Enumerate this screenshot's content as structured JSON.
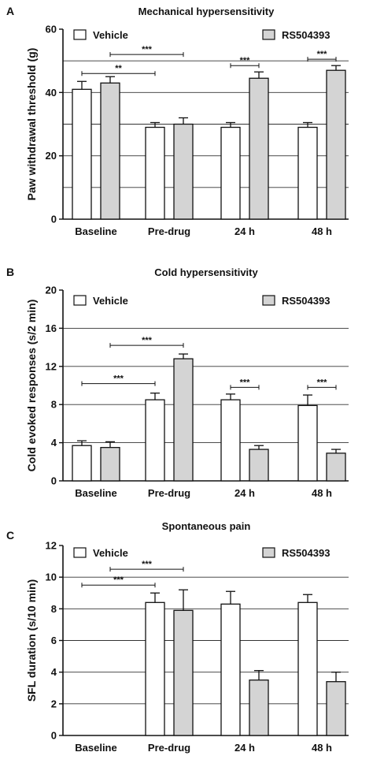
{
  "colors": {
    "vehicle": "#ffffff",
    "rs504393": "#d4d4d4",
    "axis": "#111111"
  },
  "chart_data": [
    {
      "panel": "A",
      "type": "bar",
      "title": "Mechanical hypersensitivity",
      "ylabel": "Paw withdrawal threshold (g)",
      "xlabel": "",
      "ylim": [
        0,
        60
      ],
      "yticks": [
        0,
        20,
        40,
        60
      ],
      "grid_lines": [
        10,
        20,
        30,
        40,
        50
      ],
      "categories": [
        "Baseline",
        "Pre-drug",
        "24 h",
        "48 h"
      ],
      "series": [
        {
          "name": "Vehicle",
          "values": [
            41,
            29,
            29,
            29
          ],
          "errors": [
            2.5,
            1.5,
            1.5,
            1.5
          ]
        },
        {
          "name": "RS504393",
          "values": [
            43,
            30,
            44.5,
            47
          ],
          "errors": [
            2,
            2,
            2,
            1.5
          ]
        }
      ],
      "significance": [
        {
          "label": "**",
          "from": [
            0,
            0
          ],
          "to": [
            1,
            0
          ],
          "level": 46
        },
        {
          "label": "***",
          "from": [
            0,
            1
          ],
          "to": [
            1,
            1
          ],
          "level": 52
        },
        {
          "label": "***",
          "from": [
            2,
            0
          ],
          "to": [
            2,
            1
          ],
          "level": 48.5
        },
        {
          "label": "***",
          "from": [
            3,
            0
          ],
          "to": [
            3,
            1
          ],
          "level": 50.5
        }
      ],
      "legend": "top"
    },
    {
      "panel": "B",
      "type": "bar",
      "title": "Cold hypersensitivity",
      "ylabel": "Cold evoked responses (s/2 min)",
      "xlabel": "",
      "ylim": [
        0,
        20
      ],
      "yticks": [
        0,
        4,
        8,
        12,
        16,
        20
      ],
      "grid_lines": [
        4,
        8,
        12,
        16
      ],
      "categories": [
        "Baseline",
        "Pre-drug",
        "24 h",
        "48 h"
      ],
      "series": [
        {
          "name": "Vehicle",
          "values": [
            3.7,
            8.5,
            8.5,
            7.9
          ],
          "errors": [
            0.5,
            0.7,
            0.6,
            1.1
          ]
        },
        {
          "name": "RS504393",
          "values": [
            3.5,
            12.8,
            3.3,
            2.9
          ],
          "errors": [
            0.6,
            0.5,
            0.4,
            0.4
          ]
        }
      ],
      "significance": [
        {
          "label": "***",
          "from": [
            0,
            0
          ],
          "to": [
            1,
            0
          ],
          "level": 10.2
        },
        {
          "label": "***",
          "from": [
            0,
            1
          ],
          "to": [
            1,
            1
          ],
          "level": 14.2
        },
        {
          "label": "***",
          "from": [
            2,
            0
          ],
          "to": [
            2,
            1
          ],
          "level": 9.8
        },
        {
          "label": "***",
          "from": [
            3,
            0
          ],
          "to": [
            3,
            1
          ],
          "level": 9.8
        }
      ],
      "legend": "top"
    },
    {
      "panel": "C",
      "type": "bar",
      "title": "Spontaneous pain",
      "ylabel": "SFL duration (s/10 min)",
      "xlabel": "",
      "ylim": [
        0,
        12
      ],
      "yticks": [
        0,
        2,
        4,
        6,
        8,
        10,
        12
      ],
      "grid_lines": [
        2,
        4,
        6,
        8,
        10
      ],
      "categories": [
        "Baseline",
        "Pre-drug",
        "24 h",
        "48 h"
      ],
      "series": [
        {
          "name": "Vehicle",
          "values": [
            0,
            8.4,
            8.3,
            8.4
          ],
          "errors": [
            0,
            0.6,
            0.8,
            0.5
          ]
        },
        {
          "name": "RS504393",
          "values": [
            0,
            7.9,
            3.5,
            3.4
          ],
          "errors": [
            0,
            1.3,
            0.6,
            0.6
          ]
        }
      ],
      "significance": [
        {
          "label": "***",
          "from": [
            0,
            0
          ],
          "to": [
            1,
            0
          ],
          "level": 9.5
        },
        {
          "label": "***",
          "from": [
            0,
            1
          ],
          "to": [
            1,
            1
          ],
          "level": 10.5
        }
      ],
      "legend": "top"
    }
  ]
}
